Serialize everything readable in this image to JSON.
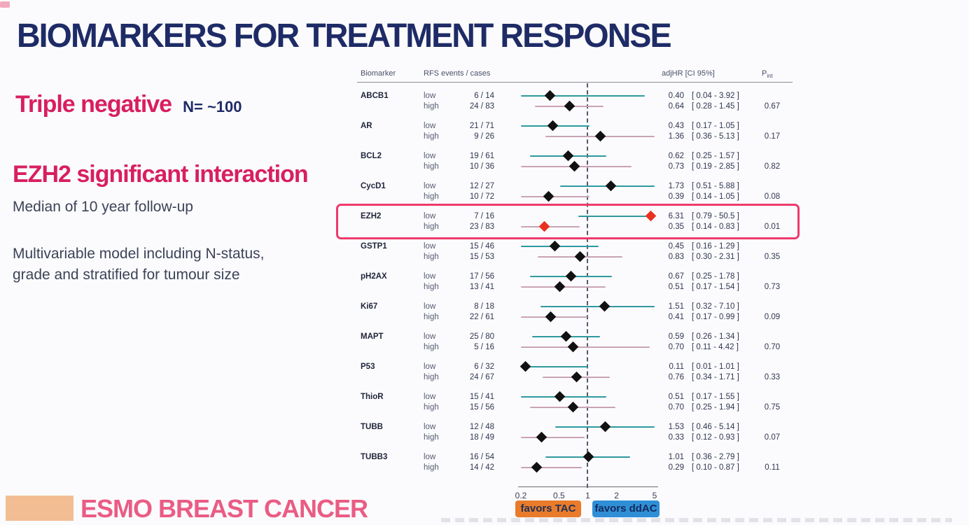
{
  "slide": {
    "title": "BIOMARKERS FOR TREATMENT RESPONSE",
    "left_panel": {
      "heading1": "Triple negative",
      "heading1_suffix": "N= ~100",
      "heading2": "EZH2 significant interaction",
      "subtext1": "Median of 10 year follow-up",
      "subtext2_line1": "Multivariable model including N-status,",
      "subtext2_line2": "grade and stratified for tumour size"
    },
    "footer": {
      "logo_text": "ESMO BREAST CANCER"
    }
  },
  "chart_data": {
    "type": "forest",
    "title": "",
    "columns": {
      "biomarker": "Biomarker",
      "events": "RFS events / cases",
      "hr": "adjHR  [CI 95%]",
      "p_label": "P",
      "p_sub": "int"
    },
    "x_axis": {
      "scale": "log",
      "min": 0.2,
      "max": 5,
      "ticks": [
        "0.2",
        "0.5",
        "1",
        "2",
        "5"
      ],
      "reference_line": 1
    },
    "legend": {
      "left": "favors TAC",
      "right": "favors ddAC",
      "left_color": "#e97b2b",
      "right_color": "#2f8fd6"
    },
    "highlight": {
      "biomarker": "EZH2",
      "border_color": "#ee3a6c"
    },
    "colors": {
      "low_line": "#2e9aa0",
      "high_line": "#c9a3b4",
      "diamond": "#111111",
      "highlight_diamond": "#e8321f"
    },
    "rows": [
      {
        "biomarker": "ABCB1",
        "highlight": false,
        "p": "0.67",
        "levels": [
          {
            "level": "low",
            "events": "6 / 14",
            "hr": 0.4,
            "hr_text": "0.40",
            "ci": [
              0.04,
              3.92
            ],
            "ci_text": "[ 0.04 - 3.92 ]"
          },
          {
            "level": "high",
            "events": "24 / 83",
            "hr": 0.64,
            "hr_text": "0.64",
            "ci": [
              0.28,
              1.45
            ],
            "ci_text": "[ 0.28 - 1.45 ]"
          }
        ]
      },
      {
        "biomarker": "AR",
        "highlight": false,
        "p": "0.17",
        "levels": [
          {
            "level": "low",
            "events": "21 / 71",
            "hr": 0.43,
            "hr_text": "0.43",
            "ci": [
              0.17,
              1.05
            ],
            "ci_text": "[ 0.17 - 1.05 ]"
          },
          {
            "level": "high",
            "events": "9 / 26",
            "hr": 1.36,
            "hr_text": "1.36",
            "ci": [
              0.36,
              5.13
            ],
            "ci_text": "[ 0.36 - 5.13 ]"
          }
        ]
      },
      {
        "biomarker": "BCL2",
        "highlight": false,
        "p": "0.82",
        "levels": [
          {
            "level": "low",
            "events": "19 / 61",
            "hr": 0.62,
            "hr_text": "0.62",
            "ci": [
              0.25,
              1.57
            ],
            "ci_text": "[ 0.25 - 1.57 ]"
          },
          {
            "level": "high",
            "events": "10 / 36",
            "hr": 0.73,
            "hr_text": "0.73",
            "ci": [
              0.19,
              2.85
            ],
            "ci_text": "[ 0.19 - 2.85 ]"
          }
        ]
      },
      {
        "biomarker": "CycD1",
        "highlight": false,
        "p": "0.08",
        "levels": [
          {
            "level": "low",
            "events": "12 / 27",
            "hr": 1.73,
            "hr_text": "1.73",
            "ci": [
              0.51,
              5.88
            ],
            "ci_text": "[ 0.51 - 5.88 ]"
          },
          {
            "level": "high",
            "events": "10 / 72",
            "hr": 0.39,
            "hr_text": "0.39",
            "ci": [
              0.14,
              1.05
            ],
            "ci_text": "[ 0.14 - 1.05 ]"
          }
        ]
      },
      {
        "biomarker": "EZH2",
        "highlight": true,
        "p": "0.01",
        "levels": [
          {
            "level": "low",
            "events": "7 / 16",
            "hr": 6.31,
            "hr_text": "6.31",
            "ci": [
              0.79,
              50.5
            ],
            "ci_text": "[ 0.79 - 50.5 ]"
          },
          {
            "level": "high",
            "events": "23 / 83",
            "hr": 0.35,
            "hr_text": "0.35",
            "ci": [
              0.14,
              0.83
            ],
            "ci_text": "[ 0.14 - 0.83 ]"
          }
        ]
      },
      {
        "biomarker": "GSTP1",
        "highlight": false,
        "p": "0.35",
        "levels": [
          {
            "level": "low",
            "events": "15 / 46",
            "hr": 0.45,
            "hr_text": "0.45",
            "ci": [
              0.16,
              1.29
            ],
            "ci_text": "[ 0.16 - 1.29 ]"
          },
          {
            "level": "high",
            "events": "15 / 53",
            "hr": 0.83,
            "hr_text": "0.83",
            "ci": [
              0.3,
              2.31
            ],
            "ci_text": "[ 0.30 - 2.31 ]"
          }
        ]
      },
      {
        "biomarker": "pH2AX",
        "highlight": false,
        "p": "0.73",
        "levels": [
          {
            "level": "low",
            "events": "17 / 56",
            "hr": 0.67,
            "hr_text": "0.67",
            "ci": [
              0.25,
              1.78
            ],
            "ci_text": "[ 0.25 - 1.78 ]"
          },
          {
            "level": "high",
            "events": "13 / 41",
            "hr": 0.51,
            "hr_text": "0.51",
            "ci": [
              0.17,
              1.54
            ],
            "ci_text": "[ 0.17 - 1.54 ]"
          }
        ]
      },
      {
        "biomarker": "Ki67",
        "highlight": false,
        "p": "0.09",
        "levels": [
          {
            "level": "low",
            "events": "8 / 18",
            "hr": 1.51,
            "hr_text": "1.51",
            "ci": [
              0.32,
              7.1
            ],
            "ci_text": "[ 0.32 - 7.10 ]"
          },
          {
            "level": "high",
            "events": "22 / 61",
            "hr": 0.41,
            "hr_text": "0.41",
            "ci": [
              0.17,
              0.99
            ],
            "ci_text": "[ 0.17 - 0.99 ]"
          }
        ]
      },
      {
        "biomarker": "MAPT",
        "highlight": false,
        "p": "0.70",
        "levels": [
          {
            "level": "low",
            "events": "25 / 80",
            "hr": 0.59,
            "hr_text": "0.59",
            "ci": [
              0.26,
              1.34
            ],
            "ci_text": "[ 0.26 - 1.34 ]"
          },
          {
            "level": "high",
            "events": "5 / 16",
            "hr": 0.7,
            "hr_text": "0.70",
            "ci": [
              0.11,
              4.42
            ],
            "ci_text": "[ 0.11 - 4.42 ]"
          }
        ]
      },
      {
        "biomarker": "P53",
        "highlight": false,
        "p": "0.33",
        "levels": [
          {
            "level": "low",
            "events": "6 / 32",
            "hr": 0.11,
            "hr_text": "0.11",
            "ci": [
              0.01,
              1.01
            ],
            "ci_text": "[ 0.01 - 1.01 ]"
          },
          {
            "level": "high",
            "events": "24 / 67",
            "hr": 0.76,
            "hr_text": "0.76",
            "ci": [
              0.34,
              1.71
            ],
            "ci_text": "[ 0.34 - 1.71 ]"
          }
        ]
      },
      {
        "biomarker": "ThioR",
        "highlight": false,
        "p": "0.75",
        "levels": [
          {
            "level": "low",
            "events": "15 / 41",
            "hr": 0.51,
            "hr_text": "0.51",
            "ci": [
              0.17,
              1.55
            ],
            "ci_text": "[ 0.17 - 1.55 ]"
          },
          {
            "level": "high",
            "events": "15 / 56",
            "hr": 0.7,
            "hr_text": "0.70",
            "ci": [
              0.25,
              1.94
            ],
            "ci_text": "[ 0.25 - 1.94 ]"
          }
        ]
      },
      {
        "biomarker": "TUBB",
        "highlight": false,
        "p": "0.07",
        "levels": [
          {
            "level": "low",
            "events": "12 / 48",
            "hr": 1.53,
            "hr_text": "1.53",
            "ci": [
              0.46,
              5.14
            ],
            "ci_text": "[ 0.46 - 5.14 ]"
          },
          {
            "level": "high",
            "events": "18 / 49",
            "hr": 0.33,
            "hr_text": "0.33",
            "ci": [
              0.12,
              0.93
            ],
            "ci_text": "[ 0.12 - 0.93 ]"
          }
        ]
      },
      {
        "biomarker": "TUBB3",
        "highlight": false,
        "p": "0.11",
        "levels": [
          {
            "level": "low",
            "events": "16 / 54",
            "hr": 1.01,
            "hr_text": "1.01",
            "ci": [
              0.36,
              2.79
            ],
            "ci_text": "[ 0.36 - 2.79 ]"
          },
          {
            "level": "high",
            "events": "14 / 42",
            "hr": 0.29,
            "hr_text": "0.29",
            "ci": [
              0.1,
              0.87
            ],
            "ci_text": "[ 0.10 - 0.87 ]"
          }
        ]
      }
    ]
  }
}
